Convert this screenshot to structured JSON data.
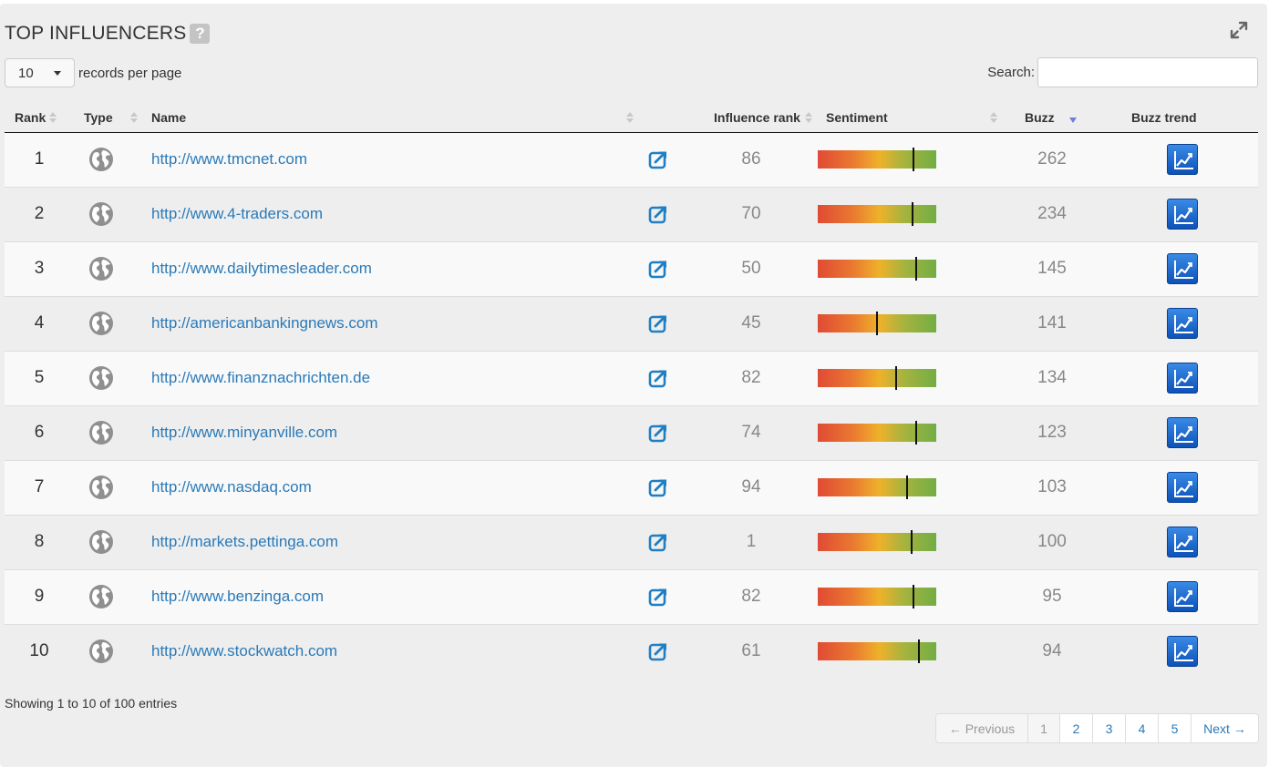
{
  "header": {
    "title": "TOP INFLUENCERS",
    "help_label": "?"
  },
  "controls": {
    "length_value": "10",
    "length_label": "records per page",
    "search_label": "Search:",
    "search_value": ""
  },
  "columns": {
    "rank": "Rank",
    "type": "Type",
    "name": "Name",
    "influence_rank": "Influence rank",
    "sentiment": "Sentiment",
    "buzz": "Buzz",
    "buzz_trend": "Buzz trend"
  },
  "rows": [
    {
      "rank": "1",
      "name": "http://www.tmcnet.com",
      "influence": "86",
      "sentiment": 0.81,
      "buzz": "262"
    },
    {
      "rank": "2",
      "name": "http://www.4-traders.com",
      "influence": "70",
      "sentiment": 0.8,
      "buzz": "234"
    },
    {
      "rank": "3",
      "name": "http://www.dailytimesleader.com",
      "influence": "50",
      "sentiment": 0.83,
      "buzz": "145"
    },
    {
      "rank": "4",
      "name": "http://americanbankingnews.com",
      "influence": "45",
      "sentiment": 0.5,
      "buzz": "141"
    },
    {
      "rank": "5",
      "name": "http://www.finanznachrichten.de",
      "influence": "82",
      "sentiment": 0.66,
      "buzz": "134"
    },
    {
      "rank": "6",
      "name": "http://www.minyanville.com",
      "influence": "74",
      "sentiment": 0.83,
      "buzz": "123"
    },
    {
      "rank": "7",
      "name": "http://www.nasdaq.com",
      "influence": "94",
      "sentiment": 0.75,
      "buzz": "103"
    },
    {
      "rank": "8",
      "name": "http://markets.pettinga.com",
      "influence": "1",
      "sentiment": 0.79,
      "buzz": "100"
    },
    {
      "rank": "9",
      "name": "http://www.benzinga.com",
      "influence": "82",
      "sentiment": 0.81,
      "buzz": "95"
    },
    {
      "rank": "10",
      "name": "http://www.stockwatch.com",
      "influence": "61",
      "sentiment": 0.85,
      "buzz": "94"
    }
  ],
  "footer": {
    "info": "Showing 1 to 10 of 100 entries",
    "prev": "← Previous",
    "pages": [
      "1",
      "2",
      "3",
      "4",
      "5"
    ],
    "next": "Next →"
  },
  "icons": {
    "type": "globe-icon",
    "link": "external-link-icon",
    "trend": "trend-chart-icon",
    "expand": "expand-icon"
  },
  "colors": {
    "link": "#2a7ab8",
    "panel": "#eeeeee",
    "trend_button": "#1a64c8"
  }
}
